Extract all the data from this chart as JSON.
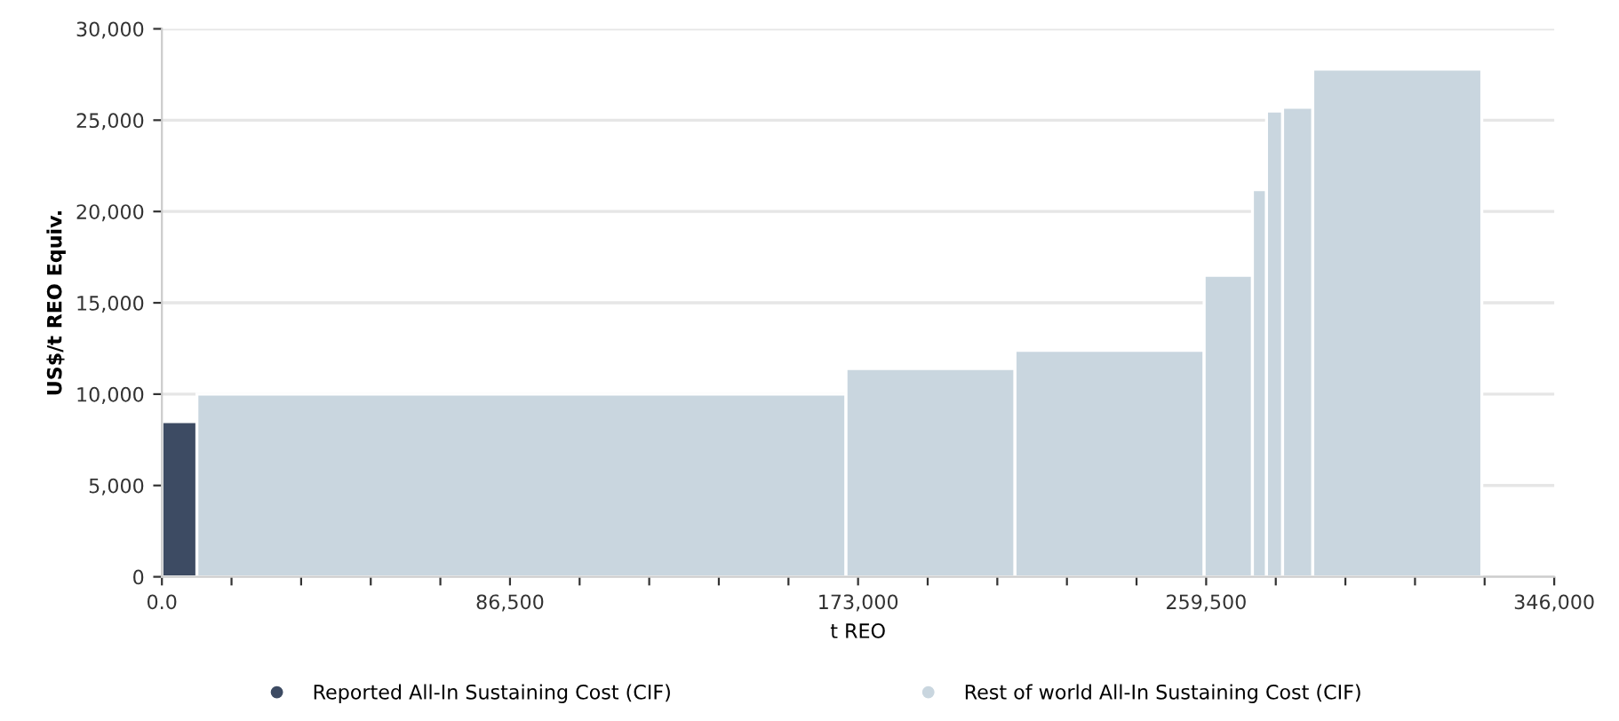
{
  "chart_data": {
    "type": "histogram",
    "xlabel": "t REO",
    "ylabel": "US$/t REO Equiv.",
    "bins": [
      0,
      8700,
      170000,
      212000,
      259000,
      271000,
      274500,
      278500,
      286000,
      328000
    ],
    "series": [
      {
        "name": "Reported All-In Sustaining Cost (CIF)",
        "color": "#3d4b63",
        "values": [
          8500,
          null,
          null,
          null,
          null,
          null,
          null,
          null,
          null
        ]
      },
      {
        "name": "Rest of world All-In Sustaining Cost (CIF)",
        "color": "#c9d6df",
        "values": [
          null,
          10000,
          11400,
          12400,
          16500,
          21200,
          25500,
          25700,
          27800
        ]
      }
    ],
    "xlim": [
      0,
      346000
    ],
    "xticks": [
      {
        "value": 0,
        "label": "0.0"
      },
      {
        "value": 17300,
        "label": null
      },
      {
        "value": 34600,
        "label": null
      },
      {
        "value": 51900,
        "label": null
      },
      {
        "value": 69200,
        "label": null
      },
      {
        "value": 86500,
        "label": "86,500"
      },
      {
        "value": 103800,
        "label": null
      },
      {
        "value": 121100,
        "label": null
      },
      {
        "value": 138400,
        "label": null
      },
      {
        "value": 155700,
        "label": null
      },
      {
        "value": 173000,
        "label": "173,000"
      },
      {
        "value": 190300,
        "label": null
      },
      {
        "value": 207600,
        "label": null
      },
      {
        "value": 224900,
        "label": null
      },
      {
        "value": 242200,
        "label": null
      },
      {
        "value": 259500,
        "label": "259,500"
      },
      {
        "value": 276800,
        "label": null
      },
      {
        "value": 294100,
        "label": null
      },
      {
        "value": 311400,
        "label": null
      },
      {
        "value": 328700,
        "label": null
      },
      {
        "value": 346000,
        "label": "346,000"
      }
    ],
    "ylim": [
      0,
      30000
    ],
    "yticks": [
      0,
      {
        "value": 5000,
        "label": "5,000"
      },
      {
        "value": 10000,
        "label": "10,000"
      },
      {
        "value": 15000,
        "label": "15,000"
      },
      {
        "value": 20000,
        "label": "20,000"
      },
      {
        "value": 25000,
        "label": "25,000"
      },
      {
        "value": 30000,
        "label": "30,000"
      }
    ],
    "grid": "y",
    "legend": "bottom",
    "marker": "circle"
  }
}
